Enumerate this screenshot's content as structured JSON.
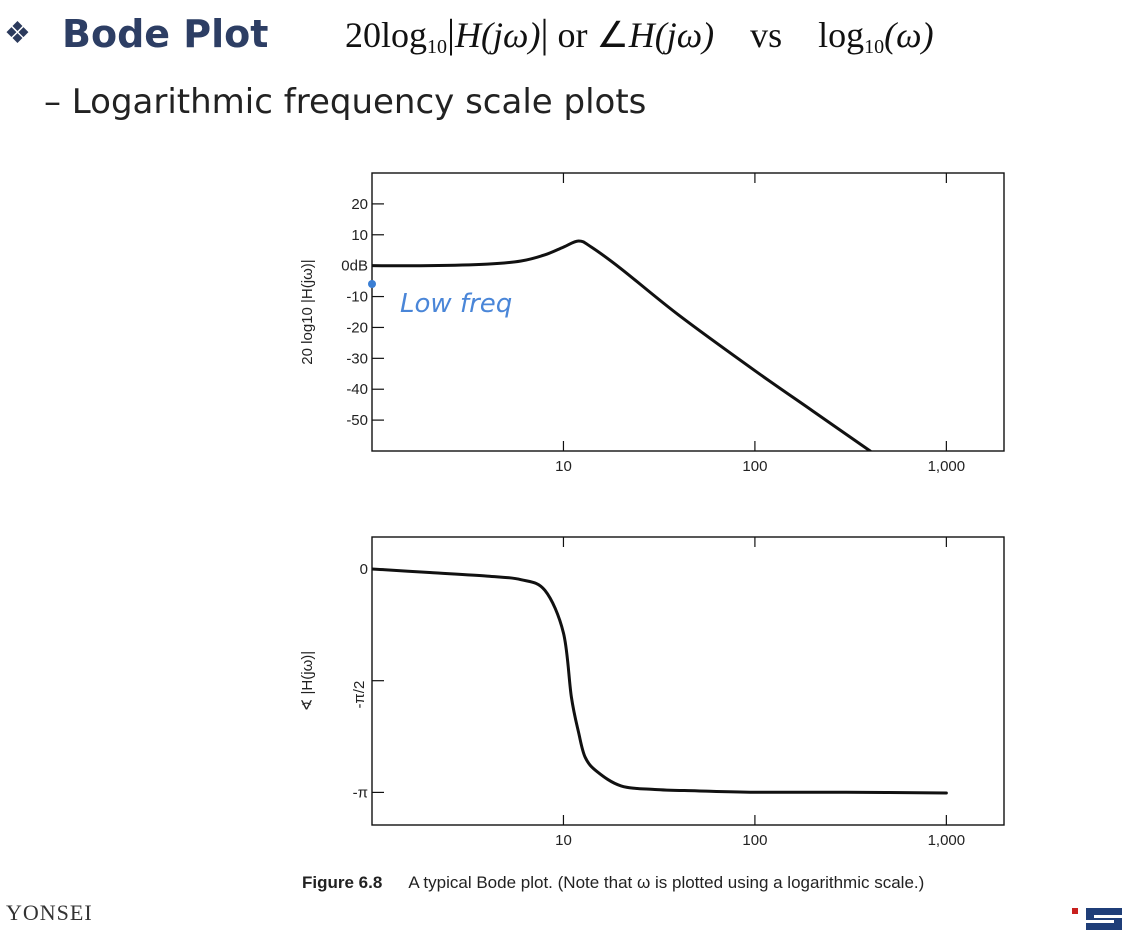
{
  "header": {
    "bullet": "❖",
    "title": "Bode Plot",
    "formula_coef": "20log",
    "formula_sub": "10",
    "formula_H": "H(jω)",
    "formula_or": "or",
    "formula_angle": "∠",
    "formula_H2": "H(jω)",
    "formula_vs": "vs",
    "formula_log": "log",
    "formula_log_sub": "10",
    "formula_omega": "(ω)"
  },
  "subtitle": "– Logarithmic frequency scale plots",
  "annotation": "Low freq",
  "caption": {
    "label": "Figure 6.8",
    "text": "A typical Bode plot. (Note that ω is plotted using a logarithmic scale.)"
  },
  "footer": {
    "logo_text": "YONSEI"
  },
  "chart_data": [
    {
      "type": "line",
      "title": "",
      "xlabel": "",
      "ylabel": "20 log10 |H(jω)|",
      "xscale": "log",
      "xlim": [
        1,
        2000
      ],
      "ylim": [
        -60,
        30
      ],
      "x_ticks": [
        10,
        100,
        1000
      ],
      "x_tick_labels": [
        "10",
        "100",
        "1,000"
      ],
      "y_ticks": [
        20,
        10,
        0,
        -10,
        -20,
        -30,
        -40,
        -50
      ],
      "y_tick_labels": [
        "20",
        "10",
        "0dB",
        "-10",
        "-20",
        "-30",
        "-40",
        "-50"
      ],
      "grid": false,
      "series": [
        {
          "x": [
            1,
            2,
            4,
            6,
            8,
            10,
            12,
            14,
            20,
            40,
            100,
            200,
            400
          ],
          "y": [
            0,
            0,
            0.5,
            1.5,
            3.5,
            6,
            8,
            6,
            -1,
            -16,
            -34,
            -47,
            -60
          ]
        }
      ]
    },
    {
      "type": "line",
      "title": "",
      "xlabel": "",
      "ylabel": "∢ |H(jω)|",
      "xscale": "log",
      "xlim": [
        1,
        2000
      ],
      "ylim": [
        -3.6,
        0.45
      ],
      "x_ticks": [
        10,
        100,
        1000
      ],
      "x_tick_labels": [
        "10",
        "100",
        "1,000"
      ],
      "y_ticks": [
        0,
        -1.5708,
        -3.1416
      ],
      "y_tick_labels": [
        "0",
        "-π/2",
        "-π"
      ],
      "grid": false,
      "series": [
        {
          "x": [
            1,
            2,
            4,
            6,
            8,
            10,
            11,
            12,
            13,
            15,
            20,
            30,
            50,
            100,
            300,
            1000
          ],
          "y": [
            0,
            -0.05,
            -0.1,
            -0.15,
            -0.3,
            -0.9,
            -1.8,
            -2.3,
            -2.65,
            -2.85,
            -3.05,
            -3.1,
            -3.12,
            -3.14,
            -3.14,
            -3.15
          ]
        }
      ]
    }
  ]
}
